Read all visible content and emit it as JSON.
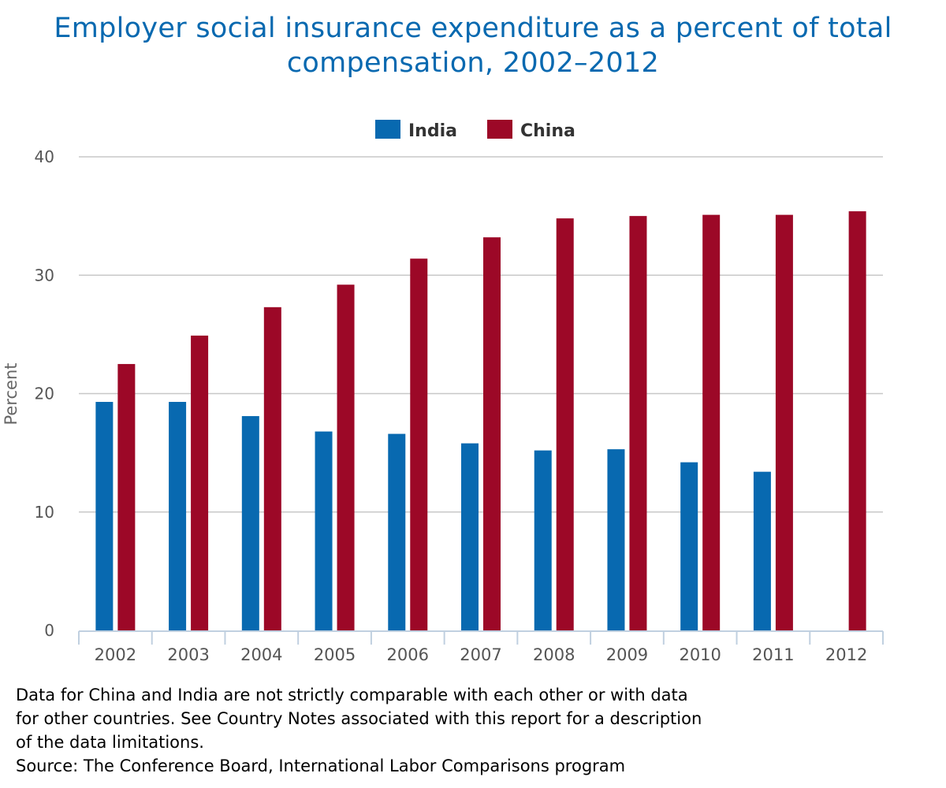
{
  "chart_data": {
    "type": "bar",
    "title": {
      "line1": "Employer social insurance expenditure as a percent of total",
      "line2": "compensation, 2002–2012"
    },
    "xlabel": "",
    "ylabel": "Percent",
    "categories": [
      "2002",
      "2003",
      "2004",
      "2005",
      "2006",
      "2007",
      "2008",
      "2009",
      "2010",
      "2011",
      "2012"
    ],
    "ylim": [
      0,
      40
    ],
    "yticks": [
      "0",
      "10",
      "20",
      "30",
      "40"
    ],
    "grid": true,
    "legend_position": "top-center",
    "series": [
      {
        "name": "India",
        "color": "#0869b0",
        "values": [
          19.3,
          19.3,
          18.1,
          16.8,
          16.6,
          15.8,
          15.2,
          15.3,
          14.2,
          13.4,
          null
        ]
      },
      {
        "name": "China",
        "color": "#9c0827",
        "values": [
          22.5,
          24.9,
          27.3,
          29.2,
          31.4,
          33.2,
          34.8,
          35.0,
          35.1,
          35.1,
          35.4
        ]
      }
    ]
  },
  "footnote": {
    "lines": [
      "Data for China and India are not strictly comparable with each other or with data",
      "for other countries. See Country Notes associated with this report for a description",
      "of the data limitations."
    ],
    "source": "Source: The Conference Board, International Labor Comparisons program"
  },
  "colors": {
    "title": "#0869b0",
    "grid": "#c8c8c8",
    "axis": "#c0d0e0",
    "tick_label": "#555555"
  }
}
